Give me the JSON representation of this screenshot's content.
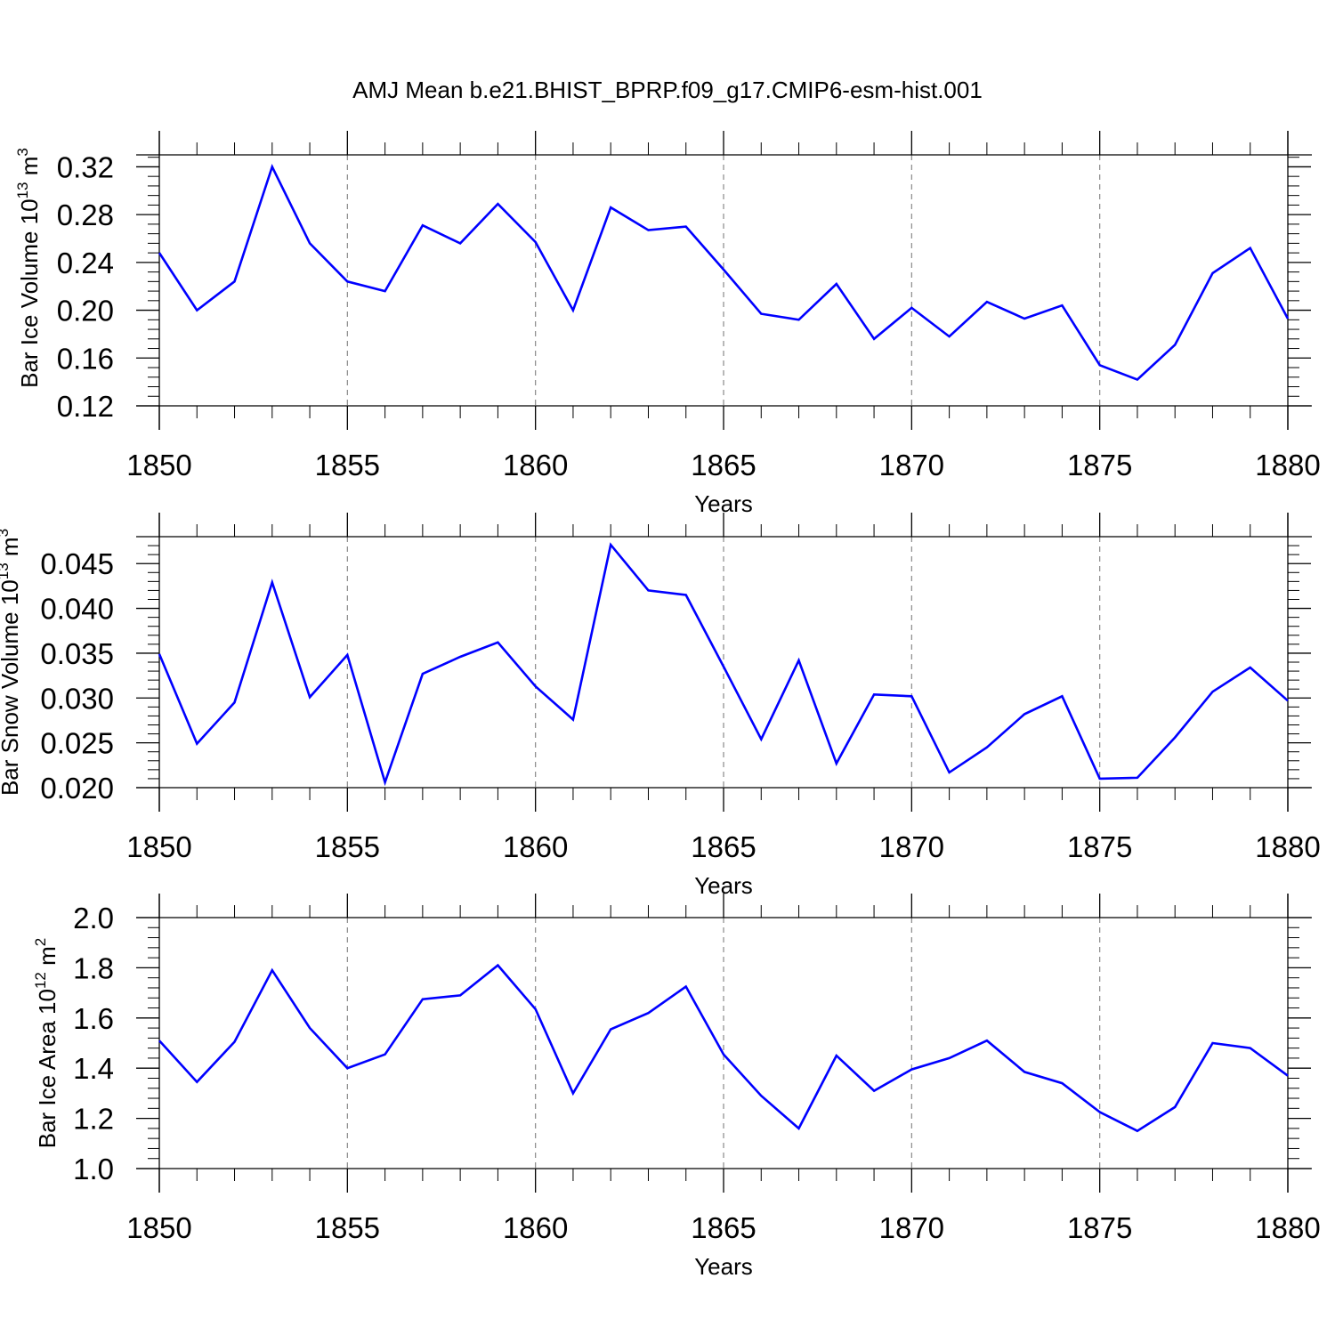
{
  "title": "AMJ Mean b.e21.BHIST_BPRP.f09_g17.CMIP6-esm-hist.001",
  "chart_data": [
    {
      "type": "line",
      "xlabel": "Years",
      "ylabel": {
        "main": "Bar Ice Volume 10",
        "exp": "13",
        "unit": " m",
        "unit_exp": "3"
      },
      "xlim": [
        1850,
        1880
      ],
      "ylim": [
        0.12,
        0.33
      ],
      "xticks": [
        "1850",
        "1855",
        "1860",
        "1865",
        "1870",
        "1875",
        "1880"
      ],
      "yticks": [
        "0.12",
        "0.16",
        "0.20",
        "0.24",
        "0.28",
        "0.32"
      ],
      "color": "#0000ff",
      "series": [
        {
          "name": "Bar Ice Volume",
          "x": [
            1850,
            1851,
            1852,
            1853,
            1854,
            1855,
            1856,
            1857,
            1858,
            1859,
            1860,
            1861,
            1862,
            1863,
            1864,
            1865,
            1866,
            1867,
            1868,
            1869,
            1870,
            1871,
            1872,
            1873,
            1874,
            1875,
            1876,
            1877,
            1878,
            1879,
            1880
          ],
          "values": [
            0.248,
            0.2,
            0.224,
            0.32,
            0.256,
            0.224,
            0.216,
            0.271,
            0.256,
            0.289,
            0.257,
            0.2,
            0.286,
            0.267,
            0.27,
            0.234,
            0.197,
            0.192,
            0.222,
            0.176,
            0.202,
            0.178,
            0.207,
            0.193,
            0.204,
            0.154,
            0.142,
            0.171,
            0.231,
            0.252,
            0.193
          ]
        }
      ]
    },
    {
      "type": "line",
      "xlabel": "Years",
      "ylabel": {
        "main": "Bar Snow Volume 10",
        "exp": "13",
        "unit": " m",
        "unit_exp": "3"
      },
      "xlim": [
        1850,
        1880
      ],
      "ylim": [
        0.02,
        0.048
      ],
      "xticks": [
        "1850",
        "1855",
        "1860",
        "1865",
        "1870",
        "1875",
        "1880"
      ],
      "yticks": [
        "0.020",
        "0.025",
        "0.030",
        "0.035",
        "0.040",
        "0.045"
      ],
      "color": "#0000ff",
      "series": [
        {
          "name": "Bar Snow Volume",
          "x": [
            1850,
            1851,
            1852,
            1853,
            1854,
            1855,
            1856,
            1857,
            1858,
            1859,
            1860,
            1861,
            1862,
            1863,
            1864,
            1865,
            1866,
            1867,
            1868,
            1869,
            1870,
            1871,
            1872,
            1873,
            1874,
            1875,
            1876,
            1877,
            1878,
            1879,
            1880
          ],
          "values": [
            0.0349,
            0.0249,
            0.0295,
            0.0429,
            0.0301,
            0.0348,
            0.0206,
            0.0327,
            0.0346,
            0.0362,
            0.0313,
            0.0276,
            0.0471,
            0.042,
            0.0415,
            0.0335,
            0.0254,
            0.0342,
            0.0227,
            0.0304,
            0.0302,
            0.0217,
            0.0245,
            0.0282,
            0.0302,
            0.021,
            0.0211,
            0.0256,
            0.0307,
            0.0334,
            0.0297
          ]
        }
      ]
    },
    {
      "type": "line",
      "xlabel": "Years",
      "ylabel": {
        "main": "Bar Ice Area 10",
        "exp": "12",
        "unit": " m",
        "unit_exp": "2"
      },
      "xlim": [
        1850,
        1880
      ],
      "ylim": [
        1.0,
        2.0
      ],
      "xticks": [
        "1850",
        "1855",
        "1860",
        "1865",
        "1870",
        "1875",
        "1880"
      ],
      "yticks": [
        "1.0",
        "1.2",
        "1.4",
        "1.6",
        "1.8",
        "2.0"
      ],
      "color": "#0000ff",
      "series": [
        {
          "name": "Bar Ice Area",
          "x": [
            1850,
            1851,
            1852,
            1853,
            1854,
            1855,
            1856,
            1857,
            1858,
            1859,
            1860,
            1861,
            1862,
            1863,
            1864,
            1865,
            1866,
            1867,
            1868,
            1869,
            1870,
            1871,
            1872,
            1873,
            1874,
            1875,
            1876,
            1877,
            1878,
            1879,
            1880
          ],
          "values": [
            1.51,
            1.345,
            1.505,
            1.79,
            1.56,
            1.4,
            1.455,
            1.675,
            1.69,
            1.81,
            1.635,
            1.3,
            1.555,
            1.62,
            1.725,
            1.455,
            1.29,
            1.16,
            1.45,
            1.31,
            1.395,
            1.44,
            1.51,
            1.385,
            1.34,
            1.225,
            1.15,
            1.245,
            1.5,
            1.48,
            1.37
          ]
        }
      ]
    }
  ]
}
